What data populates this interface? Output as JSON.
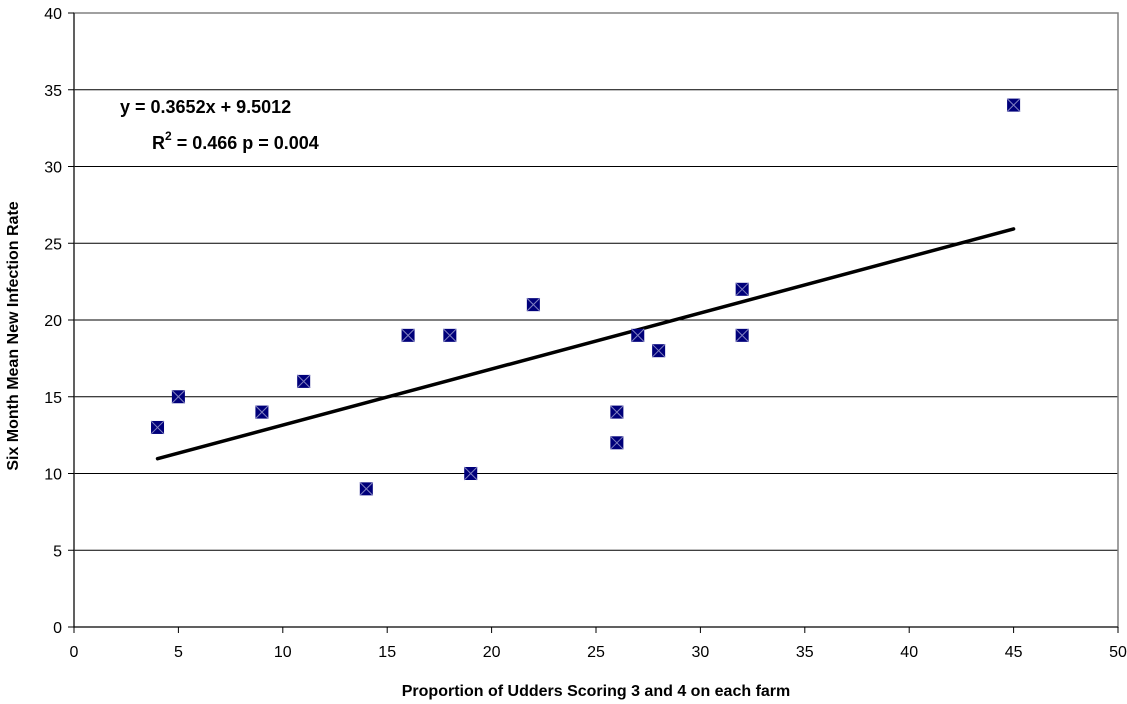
{
  "chart_data": {
    "type": "scatter",
    "title": "",
    "xlabel": "Proportion of Udders Scoring 3 and 4 on each farm",
    "ylabel": "Six Month Mean New Infection Rate",
    "xlim": [
      0,
      50
    ],
    "ylim": [
      0,
      40
    ],
    "xticks": [
      0,
      5,
      10,
      15,
      20,
      25,
      30,
      35,
      40,
      45,
      50
    ],
    "yticks": [
      0,
      5,
      10,
      15,
      20,
      25,
      30,
      35,
      40
    ],
    "grid": "horizontal",
    "legend": "none",
    "marker_color": "#00007A",
    "series": [
      {
        "x": [
          4,
          5,
          9,
          11,
          14,
          16,
          18,
          19,
          22,
          26,
          26,
          27,
          28,
          32,
          32,
          45
        ],
        "y": [
          13,
          15,
          14,
          16,
          9,
          19,
          19,
          10,
          21,
          14,
          12,
          19,
          18,
          22,
          19,
          34
        ]
      }
    ],
    "trendline": {
      "type": "linear",
      "slope": 0.3652,
      "intercept": 9.5012,
      "x_range": [
        4,
        45
      ],
      "color": "#000000"
    },
    "annotations": {
      "equation": "y = 0.3652x + 9.5012",
      "r_label": "R",
      "r_exponent": "2",
      "r_rest": " = 0.466 p = 0.004"
    }
  }
}
